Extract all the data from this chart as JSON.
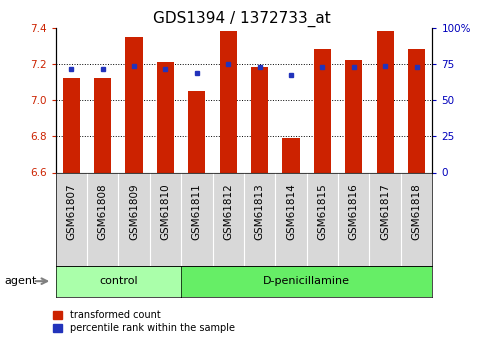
{
  "title": "GDS1394 / 1372733_at",
  "samples": [
    "GSM61807",
    "GSM61808",
    "GSM61809",
    "GSM61810",
    "GSM61811",
    "GSM61812",
    "GSM61813",
    "GSM61814",
    "GSM61815",
    "GSM61816",
    "GSM61817",
    "GSM61818"
  ],
  "red_values": [
    7.12,
    7.12,
    7.35,
    7.21,
    7.05,
    7.38,
    7.18,
    6.79,
    7.28,
    7.22,
    7.38,
    7.28
  ],
  "blue_values": [
    7.17,
    7.17,
    7.19,
    7.17,
    7.15,
    7.2,
    7.18,
    7.14,
    7.18,
    7.18,
    7.19,
    7.18
  ],
  "ymin": 6.6,
  "ymax": 7.4,
  "yticks_left": [
    6.6,
    6.8,
    7.0,
    7.2,
    7.4
  ],
  "right_yticks": [
    0,
    25,
    50,
    75,
    100
  ],
  "right_ytick_labels": [
    "0",
    "25",
    "50",
    "75",
    "100%"
  ],
  "bar_color": "#CC2200",
  "blue_color": "#2233BB",
  "bar_width": 0.55,
  "ctrl_count": 4,
  "treat_count": 8,
  "control_label": "control",
  "treatment_label": "D-penicillamine",
  "agent_label": "agent",
  "legend_red": "transformed count",
  "legend_blue": "percentile rank within the sample",
  "title_fontsize": 11,
  "tick_fontsize": 7.5,
  "dotted_lines": [
    6.8,
    7.0,
    7.2
  ],
  "ctrl_color": "#AAFFAA",
  "treat_color": "#66EE66"
}
